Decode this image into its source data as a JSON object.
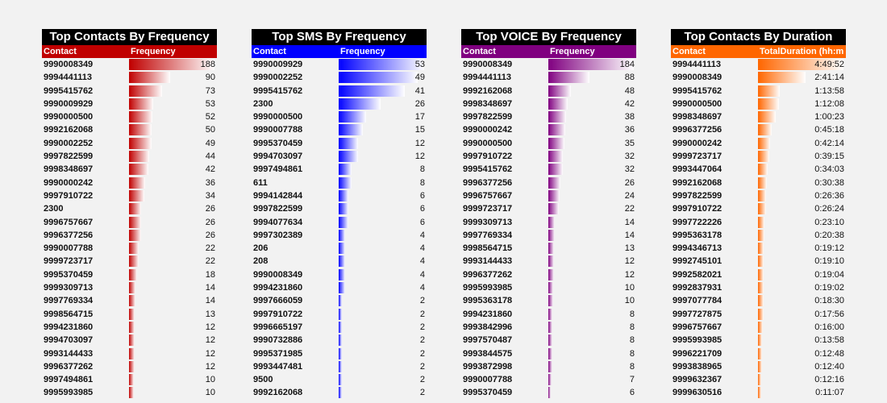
{
  "panels": [
    {
      "title": "Top Contacts By Frequency",
      "col1": "Contact",
      "col2": "Frequency",
      "color": "#c00000",
      "max": 188,
      "rows": [
        {
          "contact": "9990008349",
          "value": "188",
          "num": 188
        },
        {
          "contact": "9994441113",
          "value": "90",
          "num": 90
        },
        {
          "contact": "9995415762",
          "value": "73",
          "num": 73
        },
        {
          "contact": "9990009929",
          "value": "53",
          "num": 53
        },
        {
          "contact": "9990000500",
          "value": "52",
          "num": 52
        },
        {
          "contact": "9992162068",
          "value": "50",
          "num": 50
        },
        {
          "contact": "9990002252",
          "value": "49",
          "num": 49
        },
        {
          "contact": "9997822599",
          "value": "44",
          "num": 44
        },
        {
          "contact": "9998348697",
          "value": "42",
          "num": 42
        },
        {
          "contact": "9990000242",
          "value": "36",
          "num": 36
        },
        {
          "contact": "9997910722",
          "value": "34",
          "num": 34
        },
        {
          "contact": "2300",
          "value": "26",
          "num": 26
        },
        {
          "contact": "9996757667",
          "value": "26",
          "num": 26
        },
        {
          "contact": "9996377256",
          "value": "26",
          "num": 26
        },
        {
          "contact": "9990007788",
          "value": "22",
          "num": 22
        },
        {
          "contact": "9999723717",
          "value": "22",
          "num": 22
        },
        {
          "contact": "9995370459",
          "value": "18",
          "num": 18
        },
        {
          "contact": "9999309713",
          "value": "14",
          "num": 14
        },
        {
          "contact": "9997769334",
          "value": "14",
          "num": 14
        },
        {
          "contact": "9998564715",
          "value": "13",
          "num": 13
        },
        {
          "contact": "9994231860",
          "value": "12",
          "num": 12
        },
        {
          "contact": "9994703097",
          "value": "12",
          "num": 12
        },
        {
          "contact": "9993144433",
          "value": "12",
          "num": 12
        },
        {
          "contact": "9996377262",
          "value": "12",
          "num": 12
        },
        {
          "contact": "9997494861",
          "value": "10",
          "num": 10
        },
        {
          "contact": "9995993985",
          "value": "10",
          "num": 10
        }
      ]
    },
    {
      "title": "Top SMS By Frequency",
      "col1": "Contact",
      "col2": "Frequency",
      "color": "#0000ff",
      "max": 53,
      "rows": [
        {
          "contact": "9990009929",
          "value": "53",
          "num": 53
        },
        {
          "contact": "9990002252",
          "value": "49",
          "num": 49
        },
        {
          "contact": "9995415762",
          "value": "41",
          "num": 41
        },
        {
          "contact": "2300",
          "value": "26",
          "num": 26
        },
        {
          "contact": "9990000500",
          "value": "17",
          "num": 17
        },
        {
          "contact": "9990007788",
          "value": "15",
          "num": 15
        },
        {
          "contact": "9995370459",
          "value": "12",
          "num": 12
        },
        {
          "contact": "9994703097",
          "value": "12",
          "num": 12
        },
        {
          "contact": "9997494861",
          "value": "8",
          "num": 8
        },
        {
          "contact": "611",
          "value": "8",
          "num": 8
        },
        {
          "contact": "9994142844",
          "value": "6",
          "num": 6
        },
        {
          "contact": "9997822599",
          "value": "6",
          "num": 6
        },
        {
          "contact": "9994077634",
          "value": "6",
          "num": 6
        },
        {
          "contact": "9997302389",
          "value": "4",
          "num": 4
        },
        {
          "contact": "206",
          "value": "4",
          "num": 4
        },
        {
          "contact": "208",
          "value": "4",
          "num": 4
        },
        {
          "contact": "9990008349",
          "value": "4",
          "num": 4
        },
        {
          "contact": "9994231860",
          "value": "4",
          "num": 4
        },
        {
          "contact": "9997666059",
          "value": "2",
          "num": 2
        },
        {
          "contact": "9997910722",
          "value": "2",
          "num": 2
        },
        {
          "contact": "9996665197",
          "value": "2",
          "num": 2
        },
        {
          "contact": "9990732886",
          "value": "2",
          "num": 2
        },
        {
          "contact": "9995371985",
          "value": "2",
          "num": 2
        },
        {
          "contact": "9993447481",
          "value": "2",
          "num": 2
        },
        {
          "contact": "9500",
          "value": "2",
          "num": 2
        },
        {
          "contact": "9992162068",
          "value": "2",
          "num": 2
        }
      ]
    },
    {
      "title": "Top VOICE By Frequency",
      "col1": "Contact",
      "col2": "Frequency",
      "color": "#800080",
      "max": 184,
      "rows": [
        {
          "contact": "9990008349",
          "value": "184",
          "num": 184
        },
        {
          "contact": "9994441113",
          "value": "88",
          "num": 88
        },
        {
          "contact": "9992162068",
          "value": "48",
          "num": 48
        },
        {
          "contact": "9998348697",
          "value": "42",
          "num": 42
        },
        {
          "contact": "9997822599",
          "value": "38",
          "num": 38
        },
        {
          "contact": "9990000242",
          "value": "36",
          "num": 36
        },
        {
          "contact": "9990000500",
          "value": "35",
          "num": 35
        },
        {
          "contact": "9997910722",
          "value": "32",
          "num": 32
        },
        {
          "contact": "9995415762",
          "value": "32",
          "num": 32
        },
        {
          "contact": "9996377256",
          "value": "26",
          "num": 26
        },
        {
          "contact": "9996757667",
          "value": "24",
          "num": 24
        },
        {
          "contact": "9999723717",
          "value": "22",
          "num": 22
        },
        {
          "contact": "9999309713",
          "value": "14",
          "num": 14
        },
        {
          "contact": "9997769334",
          "value": "14",
          "num": 14
        },
        {
          "contact": "9998564715",
          "value": "13",
          "num": 13
        },
        {
          "contact": "9993144433",
          "value": "12",
          "num": 12
        },
        {
          "contact": "9996377262",
          "value": "12",
          "num": 12
        },
        {
          "contact": "9995993985",
          "value": "10",
          "num": 10
        },
        {
          "contact": "9995363178",
          "value": "10",
          "num": 10
        },
        {
          "contact": "9994231860",
          "value": "8",
          "num": 8
        },
        {
          "contact": "9993842996",
          "value": "8",
          "num": 8
        },
        {
          "contact": "9997570487",
          "value": "8",
          "num": 8
        },
        {
          "contact": "9993844575",
          "value": "8",
          "num": 8
        },
        {
          "contact": "9993872998",
          "value": "8",
          "num": 8
        },
        {
          "contact": "9990007788",
          "value": "7",
          "num": 7
        },
        {
          "contact": "9995370459",
          "value": "6",
          "num": 6
        }
      ]
    },
    {
      "title": "Top Contacts By Duration",
      "col1": "Contact",
      "col2": "TotalDuration (hh:m",
      "color": "#ff6600",
      "max": 17392,
      "rows": [
        {
          "contact": "9994441113",
          "value": "4:49:52",
          "num": 17392
        },
        {
          "contact": "9990008349",
          "value": "2:41:14",
          "num": 9674
        },
        {
          "contact": "9995415762",
          "value": "1:13:58",
          "num": 4438
        },
        {
          "contact": "9990000500",
          "value": "1:12:08",
          "num": 4328
        },
        {
          "contact": "9998348697",
          "value": "1:00:23",
          "num": 3623
        },
        {
          "contact": "9996377256",
          "value": "0:45:18",
          "num": 2718
        },
        {
          "contact": "9990000242",
          "value": "0:42:14",
          "num": 2534
        },
        {
          "contact": "9999723717",
          "value": "0:39:15",
          "num": 2355
        },
        {
          "contact": "9993447064",
          "value": "0:34:03",
          "num": 2043
        },
        {
          "contact": "9992162068",
          "value": "0:30:38",
          "num": 1838
        },
        {
          "contact": "9997822599",
          "value": "0:26:36",
          "num": 1596
        },
        {
          "contact": "9997910722",
          "value": "0:26:24",
          "num": 1584
        },
        {
          "contact": "9997722226",
          "value": "0:23:10",
          "num": 1390
        },
        {
          "contact": "9995363178",
          "value": "0:20:38",
          "num": 1238
        },
        {
          "contact": "9994346713",
          "value": "0:19:12",
          "num": 1152
        },
        {
          "contact": "9992745101",
          "value": "0:19:10",
          "num": 1150
        },
        {
          "contact": "9992582021",
          "value": "0:19:04",
          "num": 1144
        },
        {
          "contact": "9992837931",
          "value": "0:19:02",
          "num": 1142
        },
        {
          "contact": "9997077784",
          "value": "0:18:30",
          "num": 1110
        },
        {
          "contact": "9997727875",
          "value": "0:17:56",
          "num": 1076
        },
        {
          "contact": "9996757667",
          "value": "0:16:00",
          "num": 960
        },
        {
          "contact": "9995993985",
          "value": "0:13:58",
          "num": 838
        },
        {
          "contact": "9996221709",
          "value": "0:12:48",
          "num": 768
        },
        {
          "contact": "9993838965",
          "value": "0:12:40",
          "num": 760
        },
        {
          "contact": "9999632367",
          "value": "0:12:16",
          "num": 736
        },
        {
          "contact": "9999630516",
          "value": "0:11:07",
          "num": 667
        }
      ]
    }
  ]
}
